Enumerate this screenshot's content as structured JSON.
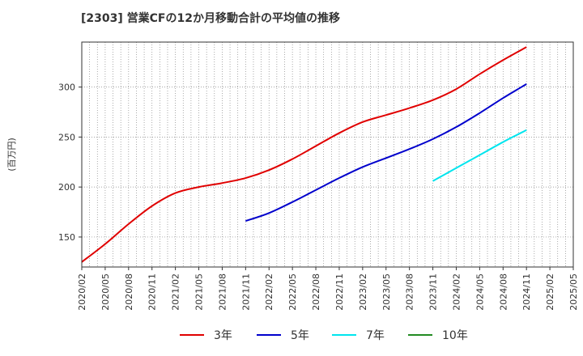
{
  "chart_data": {
    "type": "line",
    "title": "[2303]  営業CFの12か月移動合計の平均値の推移",
    "ylabel": "(百万円)",
    "xlabel": "",
    "ylim": [
      120,
      345
    ],
    "yticks": [
      150,
      200,
      250,
      300
    ],
    "x_tick_labels": [
      "2020/02",
      "2020/05",
      "2020/08",
      "2020/11",
      "2021/02",
      "2021/05",
      "2021/08",
      "2021/11",
      "2022/02",
      "2022/05",
      "2022/08",
      "2022/11",
      "2023/02",
      "2023/05",
      "2023/08",
      "2023/11",
      "2024/02",
      "2024/05",
      "2024/08",
      "2024/11",
      "2025/02",
      "2025/05"
    ],
    "grid": true,
    "legend_position": "bottom",
    "series": [
      {
        "name": "3年",
        "color": "#e00000",
        "x": [
          "2020/02",
          "2020/05",
          "2020/08",
          "2020/11",
          "2021/02",
          "2021/05",
          "2021/08",
          "2021/11",
          "2022/02",
          "2022/05",
          "2022/08",
          "2022/11",
          "2023/02",
          "2023/05",
          "2023/08",
          "2023/11",
          "2024/02",
          "2024/05",
          "2024/08",
          "2024/11"
        ],
        "values": [
          125,
          143,
          163,
          181,
          194,
          200,
          204,
          209,
          217,
          228,
          241,
          254,
          265,
          272,
          279,
          287,
          298,
          313,
          327,
          340
        ]
      },
      {
        "name": "5年",
        "color": "#0000cc",
        "x": [
          "2021/11",
          "2022/02",
          "2022/05",
          "2022/08",
          "2022/11",
          "2023/02",
          "2023/05",
          "2023/08",
          "2023/11",
          "2024/02",
          "2024/05",
          "2024/08",
          "2024/11"
        ],
        "values": [
          166,
          174,
          185,
          197,
          209,
          220,
          229,
          238,
          248,
          260,
          274,
          289,
          303
        ]
      },
      {
        "name": "7年",
        "color": "#00e5ee",
        "x": [
          "2023/11",
          "2024/02",
          "2024/05",
          "2024/08",
          "2024/11"
        ],
        "values": [
          206,
          219,
          232,
          245,
          257
        ]
      },
      {
        "name": "10年",
        "color": "#228b22",
        "x": [],
        "values": []
      }
    ]
  }
}
